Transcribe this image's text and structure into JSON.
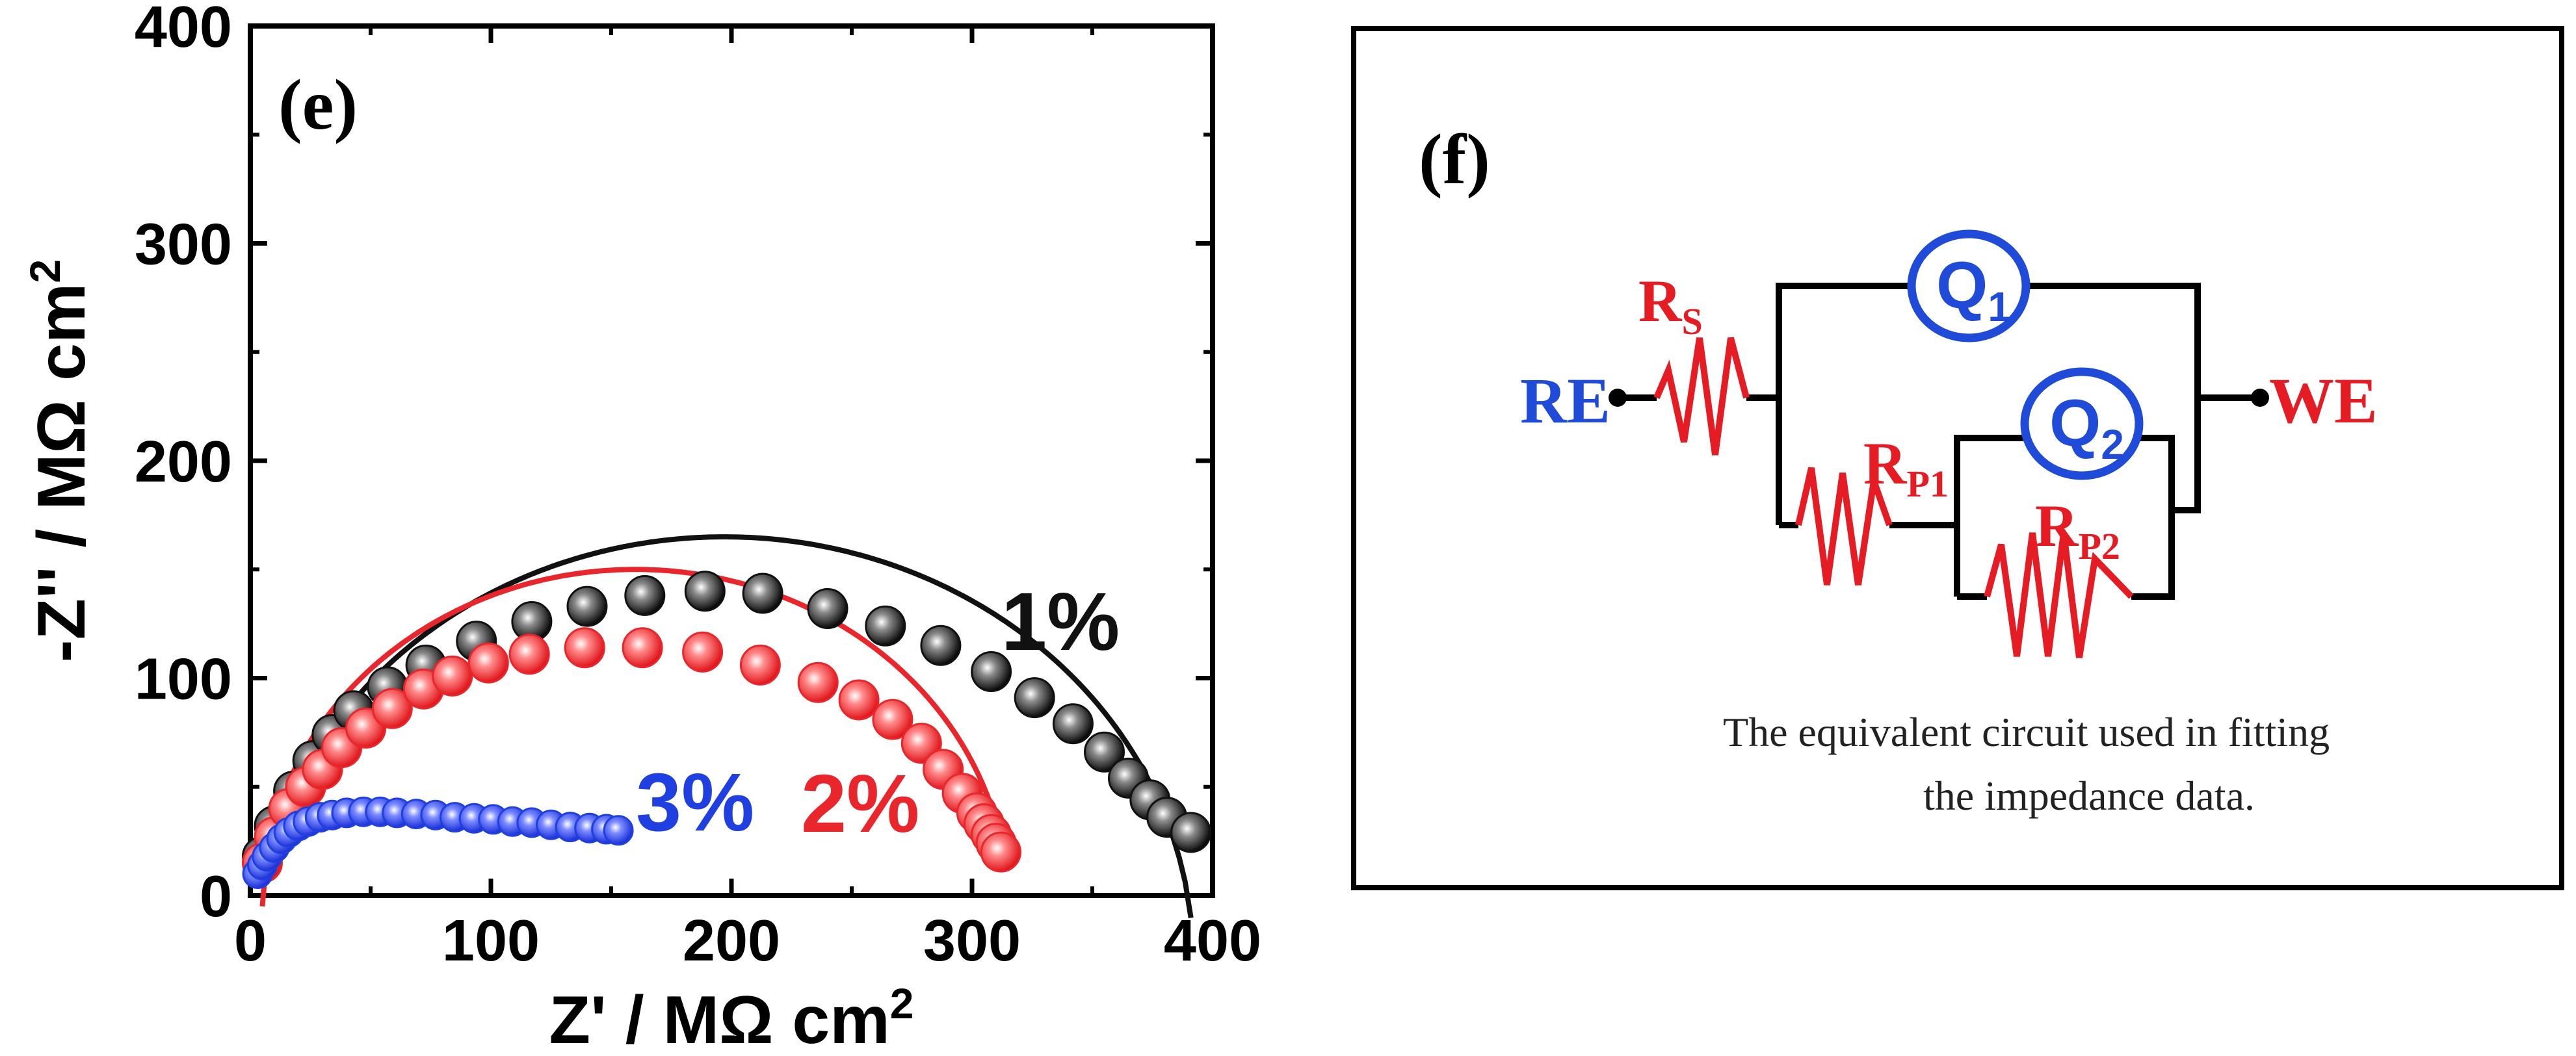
{
  "chart_data": {
    "type": "scatter",
    "panel_label": "(e)",
    "xlabel_main": "Z' / M",
    "xlabel_symbol": "Ω",
    "xlabel_unit": " cm",
    "xlabel_sup": "2",
    "ylabel_main": "-Z'' / M",
    "ylabel_symbol": "Ω",
    "ylabel_unit": " cm",
    "ylabel_sup": "2",
    "xlim": [
      0,
      400
    ],
    "ylim": [
      0,
      400
    ],
    "xticks": [
      "0",
      "100",
      "200",
      "300",
      "400"
    ],
    "yticks": [
      "0",
      "100",
      "200",
      "300",
      "400"
    ],
    "series": [
      {
        "name": "1%",
        "color": "#111111",
        "fit_center": [
          197,
          -30
        ],
        "fit_radius": 195,
        "x": [
          5,
          10,
          18,
          26,
          34,
          43,
          57,
          73,
          94,
          117,
          140,
          164,
          189,
          213,
          240,
          264,
          287,
          308,
          326,
          342,
          355,
          365,
          374,
          381,
          391
        ],
        "y": [
          18,
          32,
          48,
          62,
          74,
          85,
          96,
          106,
          117,
          126,
          133,
          138,
          140,
          139,
          132,
          124,
          115,
          103,
          91,
          79,
          66,
          54,
          44,
          36,
          29
        ]
      },
      {
        "name": "2%",
        "color": "#e8262b",
        "fit_center": [
          160,
          -5
        ],
        "fit_radius": 155,
        "x": [
          5,
          10,
          16,
          23,
          30,
          38,
          48,
          59,
          72,
          84,
          99,
          116,
          139,
          163,
          188,
          212,
          236,
          253,
          267,
          279,
          288,
          296,
          302,
          305,
          308,
          310,
          312
        ],
        "y": [
          15,
          27,
          40,
          50,
          58,
          68,
          77,
          86,
          95,
          101,
          107,
          111,
          114,
          114,
          112,
          106,
          98,
          90,
          81,
          70,
          58,
          47,
          38,
          33,
          28,
          24,
          20
        ]
      },
      {
        "name": "3%",
        "color": "#1f3fe0",
        "fit_center": null,
        "fit_radius": null,
        "x": [
          3,
          5,
          7,
          10,
          13,
          16,
          20,
          24,
          29,
          34,
          40,
          47,
          54,
          61,
          69,
          77,
          85,
          93,
          101,
          109,
          117,
          125,
          133,
          141,
          148,
          153
        ],
        "y": [
          10,
          14,
          18,
          22,
          26,
          29,
          32,
          34,
          36,
          37,
          38,
          38.5,
          38.5,
          38,
          37.5,
          37,
          36,
          35.5,
          35,
          34,
          33.5,
          32.5,
          31.5,
          31,
          30.5,
          30
        ]
      }
    ]
  },
  "circuit": {
    "panel_label": "(f)",
    "re_label": "RE",
    "we_label": "WE",
    "rs": {
      "main": "R",
      "sub": "S"
    },
    "rp1": {
      "main": "R",
      "sub": "P1"
    },
    "rp2": {
      "main": "R",
      "sub": "P2"
    },
    "q1": {
      "main": "Q",
      "sub": "1"
    },
    "q2": {
      "main": "Q",
      "sub": "2"
    },
    "caption_line1": "The equivalent circuit used in fitting",
    "caption_line2": "the impedance data.",
    "wire_color": "#000000",
    "resistor_color": "#e51c23",
    "cpe_color": "#1f4bd8"
  }
}
